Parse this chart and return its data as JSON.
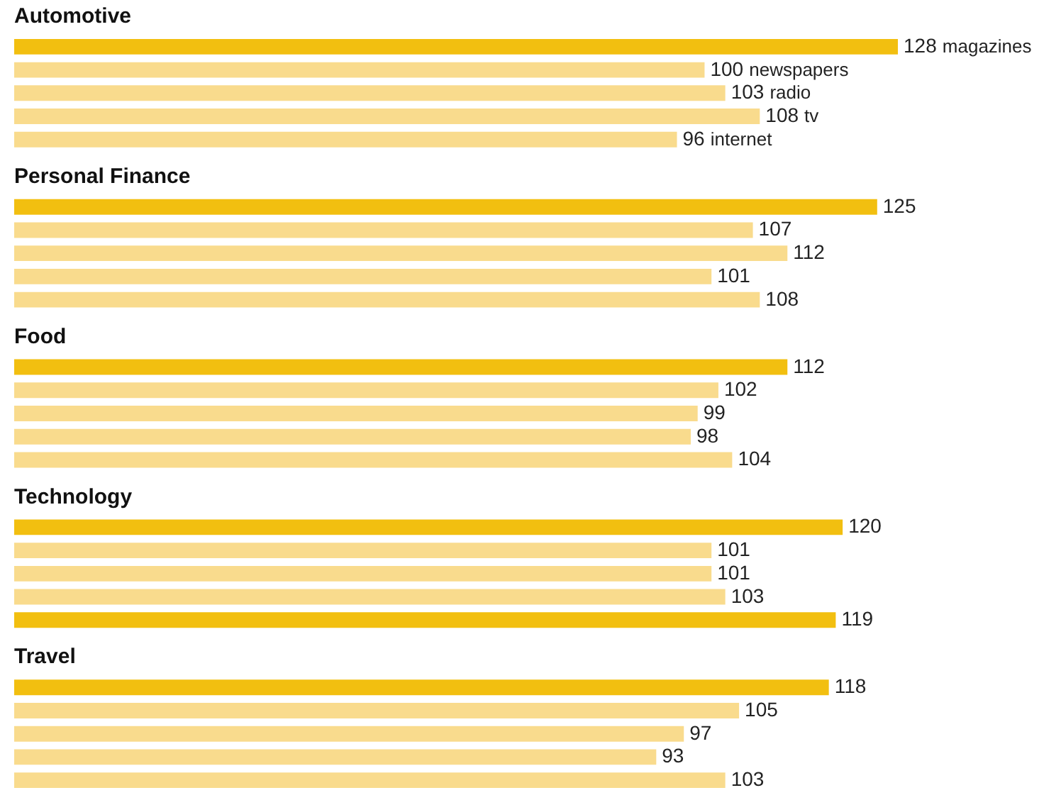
{
  "chart_data": {
    "type": "bar",
    "orientation": "horizontal",
    "categories": [
      "Automotive",
      "Personal Finance",
      "Food",
      "Technology",
      "Travel"
    ],
    "data_labels": true,
    "series": [
      {
        "name": "magazines",
        "color": "#f2bf10",
        "values": [
          128,
          125,
          112,
          120,
          118
        ]
      },
      {
        "name": "newspapers",
        "color": "#f9db8d",
        "values": [
          100,
          107,
          102,
          101,
          105
        ]
      },
      {
        "name": "radio",
        "color": "#f9db8d",
        "values": [
          103,
          112,
          99,
          101,
          97
        ]
      },
      {
        "name": "tv",
        "color": "#f9db8d",
        "values": [
          108,
          101,
          98,
          103,
          93
        ]
      },
      {
        "name": "internet",
        "color": "#f9db8d",
        "colors": [
          null,
          null,
          null,
          "#f2bf10",
          null
        ],
        "values": [
          96,
          108,
          104,
          119,
          103
        ]
      }
    ]
  }
}
